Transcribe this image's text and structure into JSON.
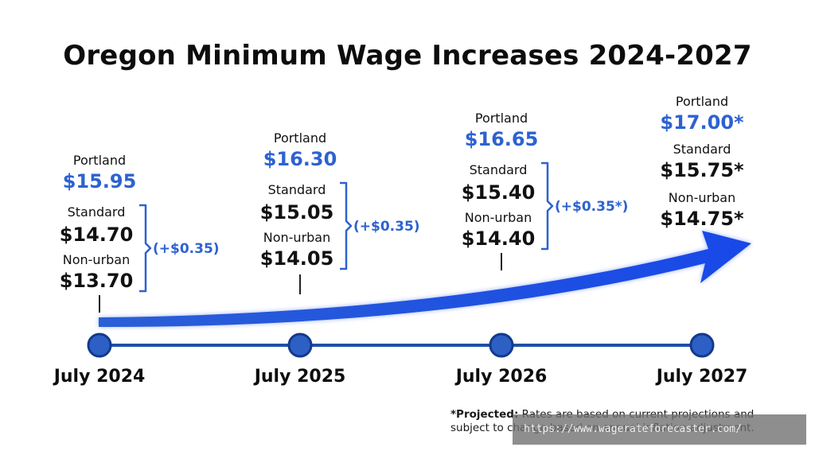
{
  "title": "Oregon Minimum Wage Increases 2024-2027",
  "colors": {
    "accent": "#2d62d0",
    "arrow": "#1a4fe0",
    "timeline": "#1f4fa8",
    "text": "#111111"
  },
  "chart_data": {
    "type": "timeline",
    "title": "Oregon Minimum Wage Increases 2024-2027",
    "categories": [
      "July 2024",
      "July 2025",
      "July 2026",
      "July 2027"
    ],
    "series": [
      {
        "name": "Portland",
        "values": [
          15.95,
          16.3,
          16.65,
          17.0
        ]
      },
      {
        "name": "Standard",
        "values": [
          14.7,
          15.05,
          15.4,
          15.75
        ]
      },
      {
        "name": "Non-urban",
        "values": [
          13.7,
          14.05,
          14.4,
          14.75
        ]
      }
    ],
    "points": [
      {
        "date": "July 2024",
        "portland_label": "Portland",
        "portland_value": "$15.95",
        "standard_label": "Standard",
        "standard_value": "$14.70",
        "nonurban_label": "Non-urban",
        "nonurban_value": "$13.70",
        "increase": "(+$0.35)"
      },
      {
        "date": "July 2025",
        "portland_label": "Portland",
        "portland_value": "$16.30",
        "standard_label": "Standard",
        "standard_value": "$15.05",
        "nonurban_label": "Non-urban",
        "nonurban_value": "$14.05",
        "increase": "(+$0.35)"
      },
      {
        "date": "July 2026",
        "portland_label": "Portland",
        "portland_value": "$16.65",
        "standard_label": "Standard",
        "standard_value": "$15.40",
        "nonurban_label": "Non-urban",
        "nonurban_value": "$14.40",
        "increase": "(+$0.35*)"
      },
      {
        "date": "July 2027",
        "portland_label": "Portland",
        "portland_value": "$17.00*",
        "standard_label": "Standard",
        "standard_value": "$15.75*",
        "nonurban_label": "Non-urban",
        "nonurban_value": "$14.75*",
        "increase": ""
      }
    ]
  },
  "footnote": {
    "bold": "*Projected:",
    "text": " Rates are based on current projections and subject to change based on annual inflation adjustment."
  },
  "watermark": "https://www.wagerateforecaster.com/"
}
